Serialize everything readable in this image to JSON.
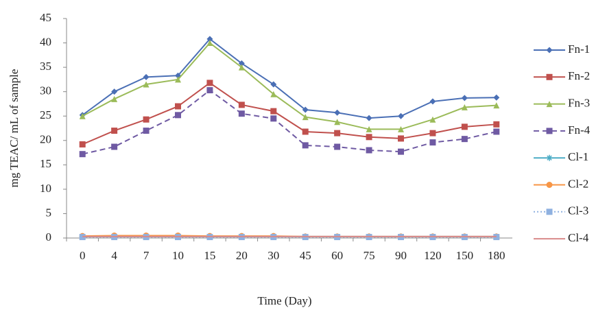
{
  "chart_data": {
    "type": "line",
    "y_label": "mg TEAC/ mL of sample",
    "x_label": "Time (Day)",
    "categories": [
      "0",
      "4",
      "7",
      "10",
      "15",
      "20",
      "30",
      "45",
      "60",
      "75",
      "90",
      "120",
      "150",
      "180"
    ],
    "ylim": [
      0,
      45
    ],
    "yticks": [
      0,
      5,
      10,
      15,
      20,
      25,
      30,
      35,
      40,
      45
    ],
    "grid": false,
    "legend": "right",
    "series": [
      {
        "name": "Fn-1",
        "color": "#4a6fb5",
        "marker": "diamond",
        "dash": "solid",
        "values": [
          25.2,
          30,
          33,
          33.3,
          40.8,
          35.8,
          31.5,
          26.3,
          25.7,
          24.6,
          25,
          28,
          28.7,
          28.8
        ]
      },
      {
        "name": "Fn-2",
        "color": "#c0504d",
        "marker": "square",
        "dash": "solid",
        "values": [
          19.2,
          22,
          24.3,
          27,
          31.8,
          27.3,
          26,
          21.8,
          21.5,
          20.7,
          20.4,
          21.5,
          22.8,
          23.3
        ]
      },
      {
        "name": "Fn-3",
        "color": "#9bbb59",
        "marker": "triangle",
        "dash": "solid",
        "values": [
          25,
          28.5,
          31.5,
          32.5,
          40,
          35,
          29.5,
          24.8,
          23.8,
          22.3,
          22.3,
          24.3,
          26.8,
          27.2
        ]
      },
      {
        "name": "Fn-4",
        "color": "#6f5aa3",
        "marker": "square",
        "dash": "dashed",
        "values": [
          17.2,
          18.7,
          22,
          25.2,
          30.3,
          25.5,
          24.5,
          19,
          18.7,
          18,
          17.7,
          19.6,
          20.3,
          21.8
        ]
      },
      {
        "name": "Cl-1",
        "color": "#4bacc6",
        "marker": "star",
        "dash": "solid",
        "values": [
          0.3,
          0.3,
          0.3,
          0.3,
          0.3,
          0.3,
          0.3,
          0.3,
          0.3,
          0.3,
          0.3,
          0.3,
          0.3,
          0.3
        ]
      },
      {
        "name": "Cl-2",
        "color": "#f79646",
        "marker": "circle",
        "dash": "solid",
        "values": [
          0.4,
          0.5,
          0.5,
          0.5,
          0.4,
          0.4,
          0.4,
          0.3,
          0.3,
          0.3,
          0.3,
          0.3,
          0.3,
          0.3
        ]
      },
      {
        "name": "Cl-3",
        "color": "#8fb1e0",
        "marker": "square",
        "dash": "dotted",
        "values": [
          0.2,
          0.2,
          0.2,
          0.2,
          0.2,
          0.2,
          0.2,
          0.2,
          0.2,
          0.2,
          0.2,
          0.2,
          0.2,
          0.2
        ]
      },
      {
        "name": "Cl-4",
        "color": "#d98a8a",
        "marker": "none",
        "dash": "solid",
        "values": [
          0.3,
          0.3,
          0.3,
          0.3,
          0.3,
          0.3,
          0.3,
          0.3,
          0.3,
          0.3,
          0.3,
          0.3,
          0.3,
          0.3
        ]
      }
    ]
  }
}
